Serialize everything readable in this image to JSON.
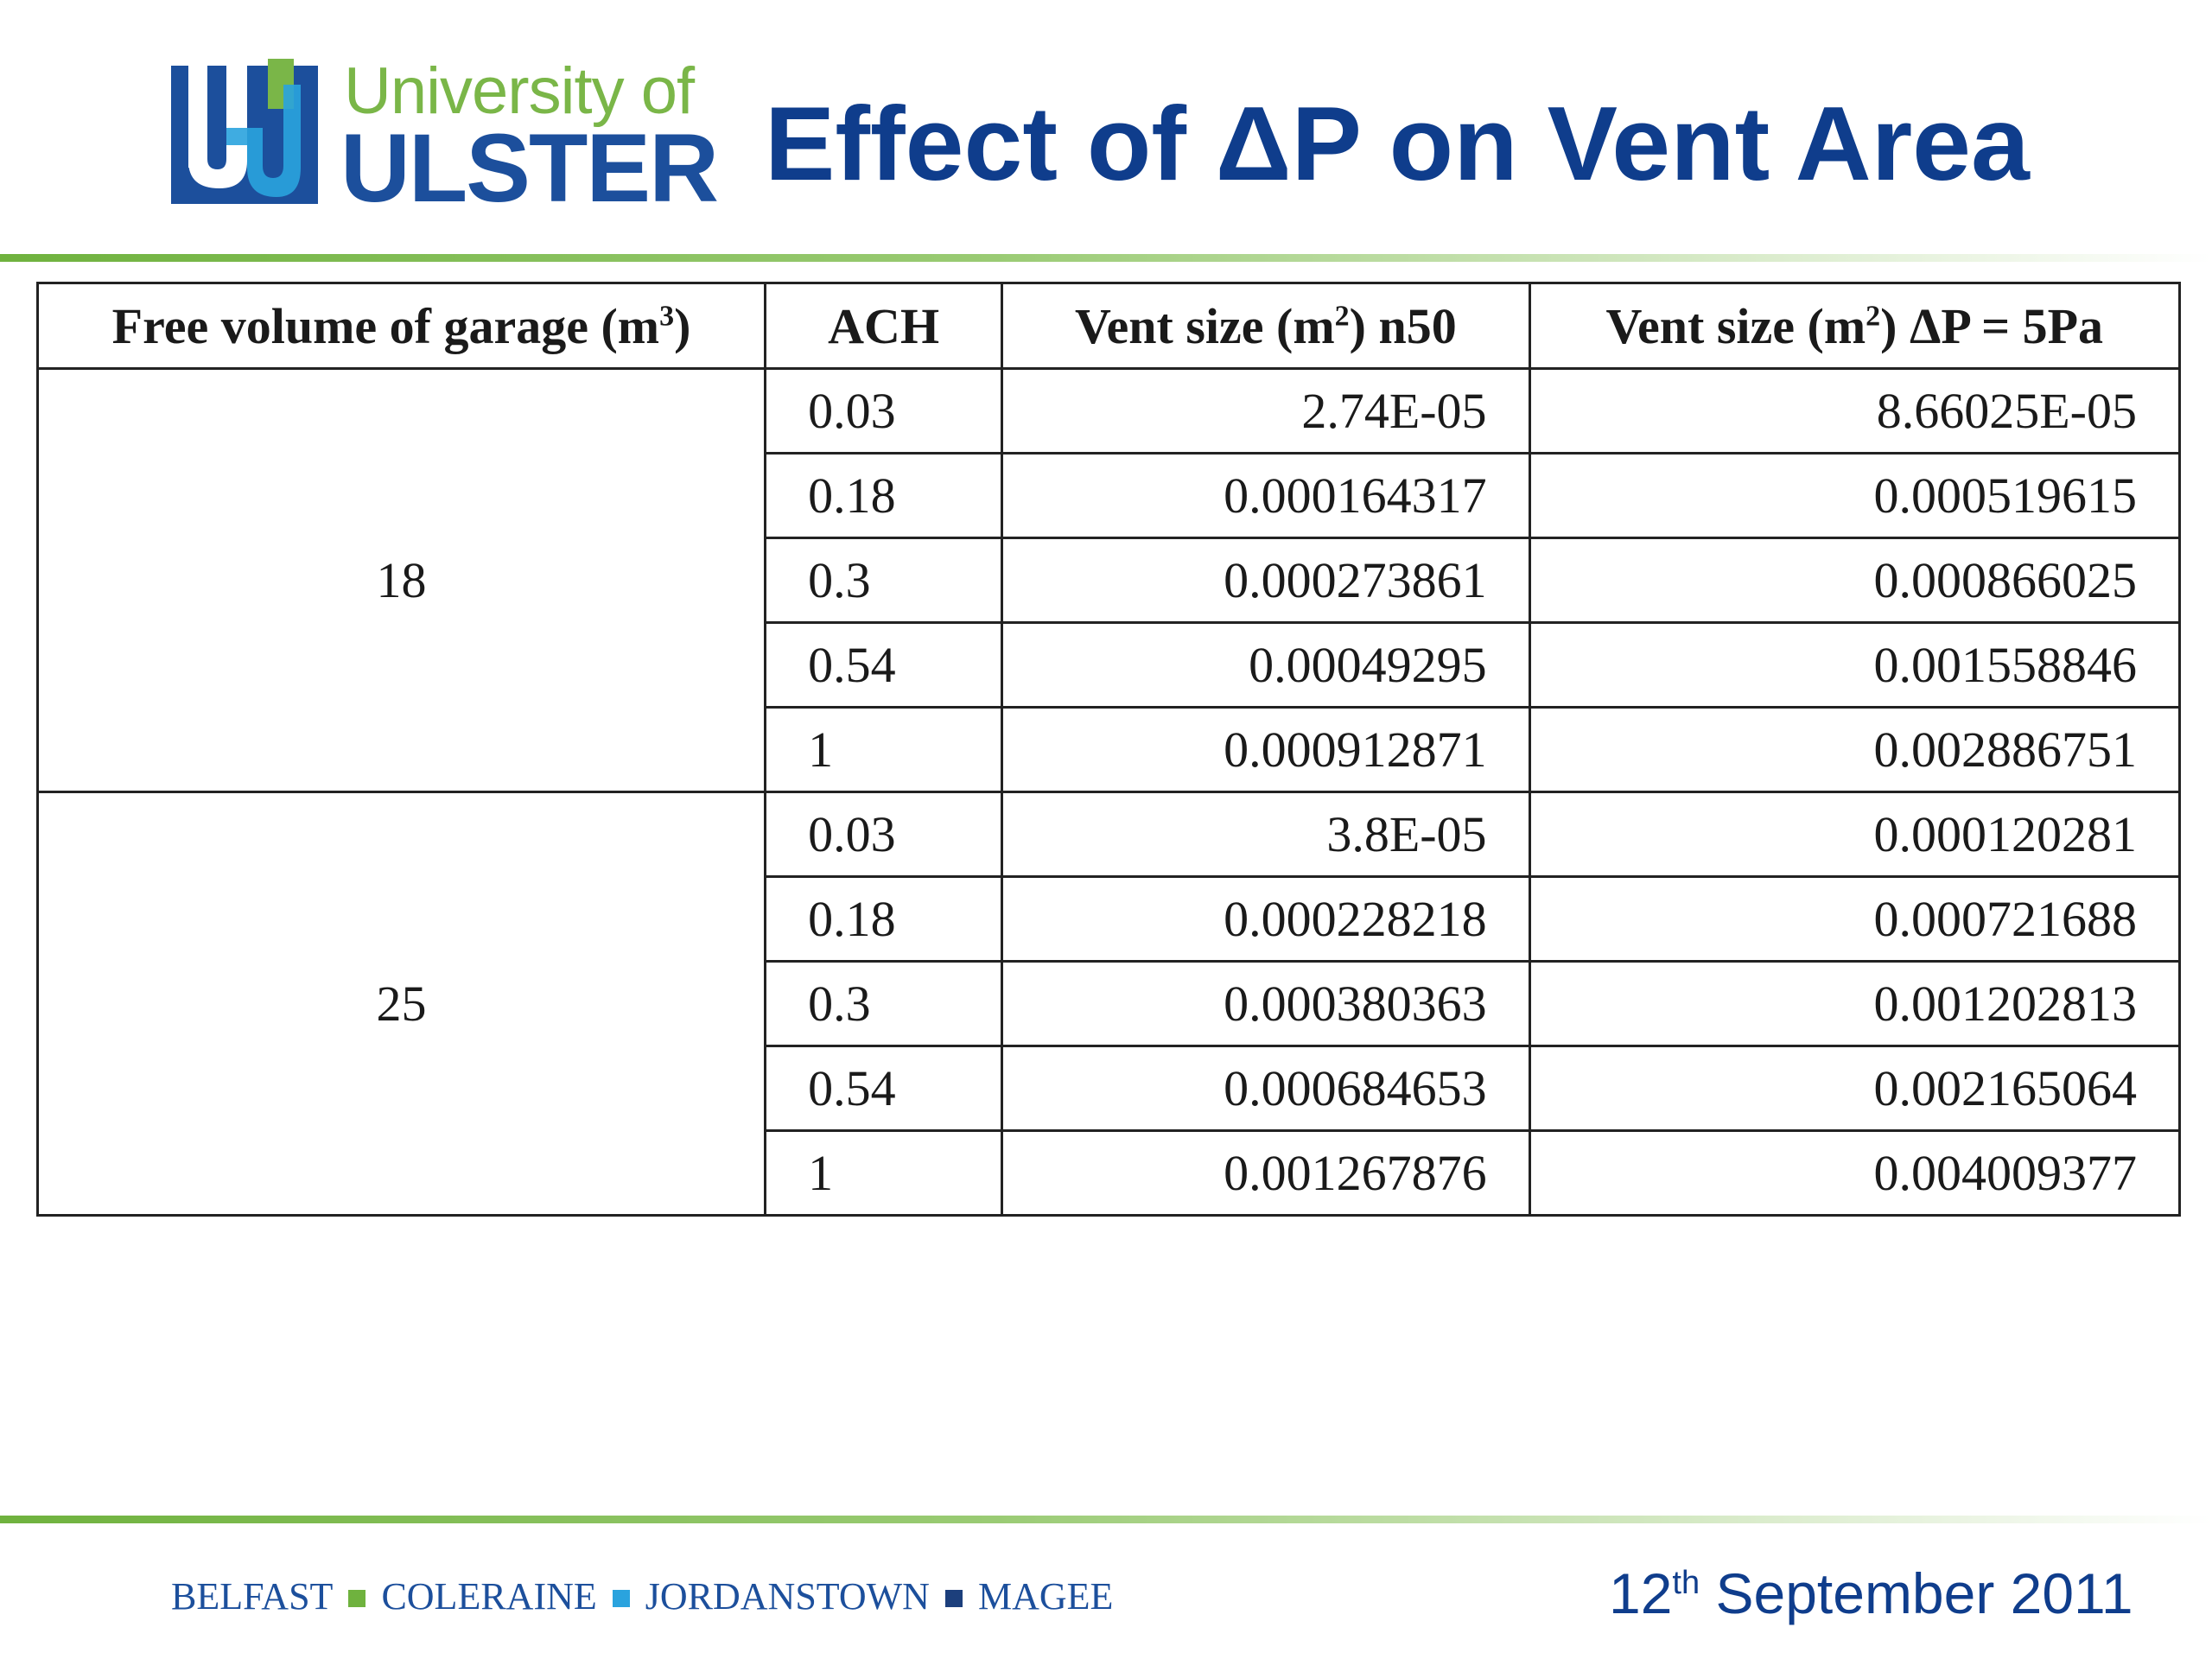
{
  "logo": {
    "line1": "University of",
    "line2": "ULSTER",
    "colors": {
      "blue": "#1c4f9c",
      "green": "#7ab648"
    }
  },
  "title": "Effect of ΔP on Vent Area",
  "table": {
    "headers": {
      "volume": {
        "text": "Free volume of garage (m",
        "sup": "3",
        "tail": ")"
      },
      "ach": "ACH",
      "vent_n50": {
        "text": "Vent size (m",
        "sup": "2",
        "tail": ")  n50"
      },
      "vent_dp": {
        "text": "Vent size (m",
        "sup": "2",
        "tail": ")  ΔP = 5Pa"
      }
    },
    "groups": [
      {
        "volume": "18",
        "rows": [
          {
            "ach": "0.03",
            "n50": "2.74E-05",
            "dp5": "8.66025E-05"
          },
          {
            "ach": "0.18",
            "n50": "0.000164317",
            "dp5": "0.000519615"
          },
          {
            "ach": "0.3",
            "n50": "0.000273861",
            "dp5": "0.000866025"
          },
          {
            "ach": "0.54",
            "n50": "0.00049295",
            "dp5": "0.001558846"
          },
          {
            "ach": "1",
            "n50": "0.000912871",
            "dp5": "0.002886751"
          }
        ]
      },
      {
        "volume": "25",
        "rows": [
          {
            "ach": "0.03",
            "n50": "3.8E-05",
            "dp5": "0.000120281"
          },
          {
            "ach": "0.18",
            "n50": "0.000228218",
            "dp5": "0.000721688"
          },
          {
            "ach": "0.3",
            "n50": "0.000380363",
            "dp5": "0.001202813"
          },
          {
            "ach": "0.54",
            "n50": "0.000684653",
            "dp5": "0.002165064"
          },
          {
            "ach": "1",
            "n50": "0.001267876",
            "dp5": "0.004009377"
          }
        ]
      }
    ]
  },
  "footer": {
    "campuses": [
      "BELFAST",
      "COLERAINE",
      "JORDANSTOWN",
      "MAGEE"
    ],
    "date": {
      "day": "12",
      "suffix": "th",
      "rest": " September 2011"
    }
  }
}
